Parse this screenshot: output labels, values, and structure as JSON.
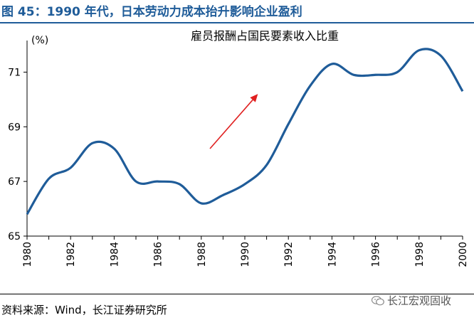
{
  "figure": {
    "title": "图 45：1990 年代，日本劳动力成本抬升影响企业盈利",
    "source": "资料来源：Wind，长江证券研究所",
    "watermark": "长江宏观固收"
  },
  "chart_data": {
    "type": "line",
    "title": "雇员报酬占国民要素收入比重",
    "ylabel": "(%)",
    "xlabel": "",
    "ylim": [
      65,
      72
    ],
    "xlim": [
      1980,
      2000
    ],
    "y_ticks": [
      "65",
      "67",
      "69",
      "71"
    ],
    "x_ticks": [
      "1980",
      "1982",
      "1984",
      "1986",
      "1988",
      "1990",
      "1992",
      "1994",
      "1996",
      "1998",
      "2000"
    ],
    "grid": false,
    "line_color": "#1f5c99",
    "arrow_color": "#e02020",
    "series": [
      {
        "x": [
          1980,
          1981,
          1982,
          1983,
          1984,
          1985,
          1986,
          1987,
          1988,
          1989,
          1990,
          1991,
          1992,
          1993,
          1994,
          1995,
          1996,
          1997,
          1998,
          1999,
          2000
        ],
        "values": [
          65.8,
          67.1,
          67.5,
          68.4,
          68.2,
          67.0,
          67.0,
          66.9,
          66.2,
          66.5,
          66.9,
          67.6,
          69.1,
          70.5,
          71.3,
          70.9,
          70.9,
          71.0,
          71.8,
          71.6,
          70.3
        ]
      }
    ],
    "annotation_arrow": {
      "from": [
        1988.4,
        68.2
      ],
      "to": [
        1990.6,
        70.2
      ]
    }
  }
}
